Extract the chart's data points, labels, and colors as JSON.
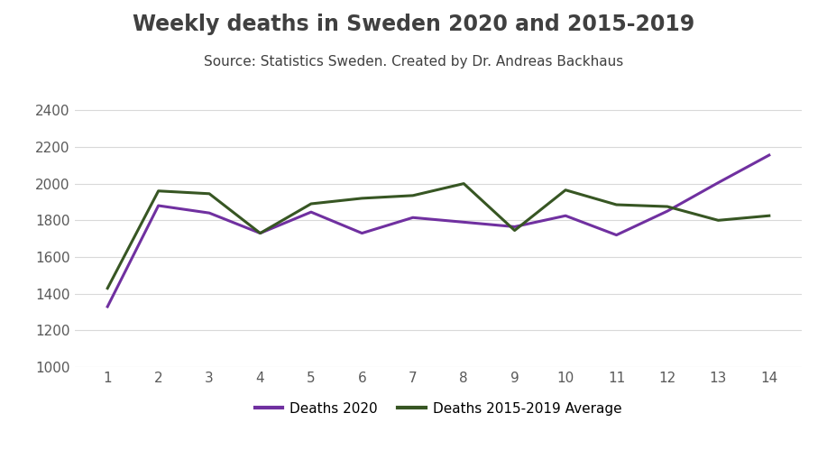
{
  "title": "Weekly deaths in Sweden 2020 and 2015-2019",
  "subtitle": "Source: Statistics Sweden. Created by Dr. Andreas Backhaus",
  "weeks": [
    1,
    2,
    3,
    4,
    5,
    6,
    7,
    8,
    9,
    10,
    11,
    12,
    13,
    14
  ],
  "deaths_2020": [
    1330,
    1880,
    1840,
    1730,
    1845,
    1730,
    1815,
    1790,
    1765,
    1825,
    1720,
    1850,
    2005,
    2155
  ],
  "deaths_avg": [
    1430,
    1960,
    1945,
    1730,
    1890,
    1920,
    1935,
    2000,
    1745,
    1965,
    1885,
    1875,
    1800,
    1825
  ],
  "color_2020": "#7030a0",
  "color_avg": "#375623",
  "line_width": 2.2,
  "ylim": [
    1000,
    2500
  ],
  "yticks": [
    1000,
    1200,
    1400,
    1600,
    1800,
    2000,
    2200,
    2400
  ],
  "xticks": [
    1,
    2,
    3,
    4,
    5,
    6,
    7,
    8,
    9,
    10,
    11,
    12,
    13,
    14
  ],
  "legend_2020": "Deaths 2020",
  "legend_avg": "Deaths 2015-2019 Average",
  "background_color": "#ffffff",
  "grid_color": "#d9d9d9",
  "title_color": "#404040",
  "title_fontsize": 17,
  "subtitle_fontsize": 11,
  "legend_fontsize": 11,
  "tick_fontsize": 11,
  "tick_color": "#595959"
}
